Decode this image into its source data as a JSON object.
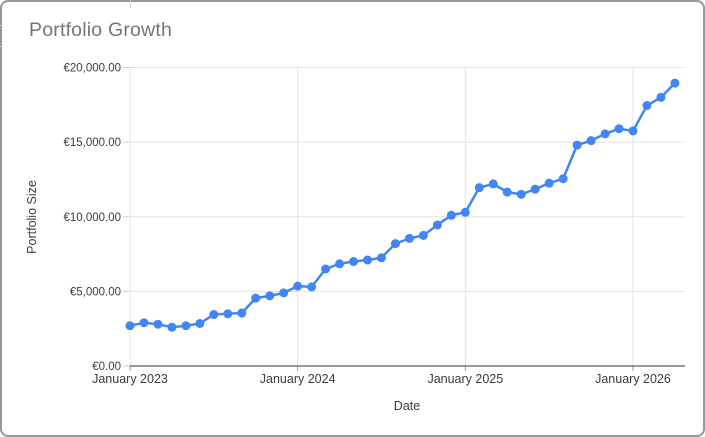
{
  "chart": {
    "title": "Portfolio Growth",
    "x_axis_title": "Date",
    "y_axis_title": "Portfolio Size"
  },
  "chart_data": {
    "type": "line",
    "title": "Portfolio Growth",
    "xlabel": "Date",
    "ylabel": "Portfolio Size",
    "legend": "none",
    "grid": true,
    "ylim": [
      0,
      20000
    ],
    "x": [
      "Jan 2023",
      "Feb 2023",
      "Mar 2023",
      "Apr 2023",
      "May 2023",
      "Jun 2023",
      "Jul 2023",
      "Aug 2023",
      "Sep 2023",
      "Oct 2023",
      "Nov 2023",
      "Dec 2023",
      "Jan 2024",
      "Feb 2024",
      "Mar 2024",
      "Apr 2024",
      "May 2024",
      "Jun 2024",
      "Jul 2024",
      "Aug 2024",
      "Sep 2024",
      "Oct 2024",
      "Nov 2024",
      "Dec 2024",
      "Jan 2025",
      "Feb 2025",
      "Mar 2025",
      "Apr 2025",
      "May 2025",
      "Jun 2025",
      "Jul 2025",
      "Aug 2025",
      "Sep 2025",
      "Oct 2025",
      "Nov 2025",
      "Dec 2025",
      "Jan 2026",
      "Feb 2026",
      "Mar 2026",
      "Apr 2026"
    ],
    "series": [
      {
        "name": "Portfolio Size",
        "values": [
          2700,
          2900,
          2800,
          2600,
          2700,
          2850,
          3450,
          3500,
          3550,
          4550,
          4700,
          4900,
          5350,
          5300,
          6500,
          6850,
          7000,
          7100,
          7250,
          8200,
          8550,
          8750,
          9450,
          10100,
          10300,
          11950,
          12200,
          11650,
          11500,
          11850,
          12250,
          12550,
          14800,
          15100,
          15550,
          15900,
          15750,
          17450,
          18000,
          18950
        ]
      }
    ],
    "x_ticks": {
      "labels": [
        "January 2023",
        "January 2024",
        "January 2025",
        "January 2026"
      ],
      "month_index": [
        0,
        12,
        24,
        36
      ]
    },
    "y_ticks": [
      {
        "value": 0,
        "label": "€0.00"
      },
      {
        "value": 5000,
        "label": "€5,000.00"
      },
      {
        "value": 10000,
        "label": "€10,000.00"
      },
      {
        "value": 15000,
        "label": "€15,000.00"
      },
      {
        "value": 20000,
        "label": "€20,000.00"
      }
    ],
    "colors": {
      "line": "#4285f4",
      "point": "#4285f4",
      "gridline": "#e3e3e3",
      "baseline": "#333333",
      "x_tick": "#9e9e9e",
      "y_tick": "#cccccc",
      "tick_label": "#3c3c3c",
      "title": "#757575"
    }
  }
}
